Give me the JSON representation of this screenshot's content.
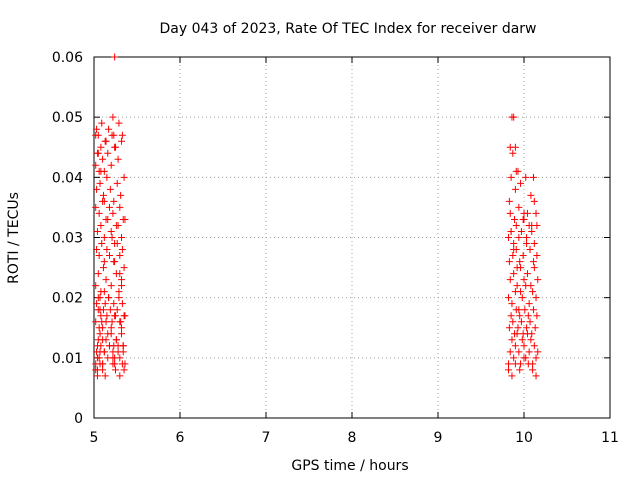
{
  "chart_data": {
    "type": "scatter",
    "title": "Day 043 of 2023, Rate Of TEC Index for receiver darw",
    "xlabel": "GPS time / hours",
    "ylabel": "ROTI / TECUs",
    "xlim": [
      5,
      11
    ],
    "ylim": [
      0,
      0.06
    ],
    "xticks": [
      5,
      6,
      7,
      8,
      9,
      10,
      11
    ],
    "xtick_labels": [
      "5",
      "6",
      "7",
      "8",
      "9",
      "10",
      "11"
    ],
    "yticks": [
      0,
      0.01,
      0.02,
      0.03,
      0.04,
      0.05,
      0.06
    ],
    "ytick_labels": [
      "0",
      "0.01",
      "0.02",
      "0.03",
      "0.04",
      "0.05",
      "0.06"
    ],
    "grid": true,
    "marker": "+",
    "series": [
      {
        "color": "#ff0000",
        "x": [
          5.02,
          5.03,
          5.04,
          5.05,
          5.06,
          5.07,
          5.08,
          5.1,
          5.12,
          5.14,
          5.16,
          5.18,
          5.2,
          5.22,
          5.24,
          5.26,
          5.28,
          5.3,
          5.32,
          5.34,
          5.02,
          5.04,
          5.06,
          5.08,
          5.1,
          5.12,
          5.14,
          5.16,
          5.18,
          5.2,
          5.22,
          5.24,
          5.26,
          5.28,
          5.3,
          5.32,
          5.34,
          5.36,
          5.03,
          5.05,
          5.07,
          5.09,
          5.11,
          5.13,
          5.15,
          5.17,
          5.19,
          5.21,
          5.23,
          5.25,
          5.27,
          5.29,
          5.31,
          5.33,
          5.35,
          5.02,
          5.05,
          5.08,
          5.11,
          5.14,
          5.17,
          5.2,
          5.23,
          5.26,
          5.29,
          5.32,
          5.35,
          5.03,
          5.06,
          5.09,
          5.12,
          5.15,
          5.18,
          5.21,
          5.24,
          5.27,
          5.3,
          5.33,
          5.04,
          5.08,
          5.12,
          5.16,
          5.2,
          5.24,
          5.28,
          5.32,
          5.36,
          5.02,
          5.06,
          5.1,
          5.14,
          5.18,
          5.22,
          5.26,
          5.3,
          5.34,
          5.03,
          5.07,
          5.11,
          5.15,
          5.19,
          5.23,
          5.27,
          5.31,
          5.35,
          5.02,
          5.04,
          5.06,
          5.08,
          5.1,
          5.12,
          5.14,
          5.16,
          5.2,
          5.24,
          5.28,
          5.32,
          5.03,
          5.05,
          5.09,
          5.13,
          5.17,
          5.21,
          5.25,
          5.29,
          5.33,
          5.02,
          5.04,
          5.07,
          5.1,
          5.13,
          5.22,
          5.25,
          5.3,
          5.33,
          5.35,
          5.04,
          5.07,
          5.1,
          5.23,
          5.24,
          5.34,
          5.36,
          5.02,
          5.05,
          5.08,
          5.12,
          5.22,
          5.23,
          5.24,
          5.05,
          5.07,
          5.1,
          5.12,
          5.3,
          5.32,
          9.82,
          9.84,
          9.86,
          9.88,
          9.9,
          9.92,
          9.94,
          9.96,
          9.98,
          10.0,
          10.02,
          10.04,
          10.06,
          10.08,
          10.1,
          10.12,
          10.14,
          10.16,
          9.83,
          9.85,
          9.87,
          9.89,
          9.91,
          9.93,
          9.95,
          9.97,
          9.99,
          10.01,
          10.03,
          10.05,
          10.07,
          10.09,
          10.11,
          10.13,
          10.15,
          9.82,
          9.86,
          9.9,
          9.94,
          9.98,
          10.02,
          10.06,
          10.1,
          10.14,
          9.84,
          9.88,
          9.92,
          9.96,
          10.0,
          10.04,
          10.08,
          10.12,
          10.16,
          9.83,
          9.87,
          9.91,
          9.95,
          9.99,
          10.03,
          10.07,
          10.11,
          10.15,
          9.82,
          9.85,
          9.88,
          9.91,
          9.94,
          9.97,
          10.0,
          10.03,
          10.06,
          10.09,
          10.12,
          10.15,
          9.84,
          9.89,
          9.94,
          9.99,
          10.04,
          10.09,
          10.14,
          9.82,
          9.86,
          9.9,
          9.95,
          10.0,
          10.05,
          10.1,
          10.14,
          9.85,
          9.9,
          9.93,
          9.96,
          10.02,
          10.08,
          10.12,
          9.84,
          9.86,
          9.87,
          9.88,
          9.9,
          9.91,
          10.0,
          9.83,
          9.85,
          9.88,
          9.92,
          9.96,
          10.11
        ],
        "y": [
          0.009,
          0.011,
          0.008,
          0.013,
          0.01,
          0.014,
          0.012,
          0.009,
          0.011,
          0.013,
          0.01,
          0.012,
          0.014,
          0.011,
          0.009,
          0.013,
          0.012,
          0.01,
          0.015,
          0.012,
          0.016,
          0.012,
          0.015,
          0.017,
          0.013,
          0.011,
          0.016,
          0.014,
          0.012,
          0.015,
          0.01,
          0.017,
          0.013,
          0.011,
          0.016,
          0.014,
          0.012,
          0.017,
          0.019,
          0.018,
          0.02,
          0.016,
          0.018,
          0.019,
          0.017,
          0.02,
          0.018,
          0.016,
          0.019,
          0.017,
          0.018,
          0.02,
          0.016,
          0.019,
          0.017,
          0.022,
          0.024,
          0.021,
          0.025,
          0.023,
          0.02,
          0.022,
          0.026,
          0.024,
          0.021,
          0.023,
          0.025,
          0.028,
          0.027,
          0.029,
          0.026,
          0.028,
          0.027,
          0.03,
          0.026,
          0.029,
          0.027,
          0.028,
          0.031,
          0.032,
          0.03,
          0.033,
          0.031,
          0.029,
          0.032,
          0.03,
          0.033,
          0.035,
          0.034,
          0.036,
          0.033,
          0.035,
          0.034,
          0.032,
          0.035,
          0.033,
          0.038,
          0.039,
          0.037,
          0.04,
          0.038,
          0.036,
          0.039,
          0.037,
          0.04,
          0.042,
          0.044,
          0.041,
          0.045,
          0.043,
          0.041,
          0.046,
          0.044,
          0.042,
          0.045,
          0.043,
          0.046,
          0.048,
          0.047,
          0.049,
          0.046,
          0.048,
          0.047,
          0.045,
          0.049,
          0.047,
          0.008,
          0.007,
          0.009,
          0.008,
          0.007,
          0.009,
          0.008,
          0.007,
          0.009,
          0.008,
          0.01,
          0.011,
          0.009,
          0.012,
          0.01,
          0.011,
          0.009,
          0.047,
          0.044,
          0.041,
          0.036,
          0.05,
          0.047,
          0.06,
          0.02,
          0.018,
          0.015,
          0.021,
          0.024,
          0.022,
          0.009,
          0.011,
          0.013,
          0.01,
          0.012,
          0.014,
          0.011,
          0.009,
          0.013,
          0.012,
          0.01,
          0.014,
          0.011,
          0.013,
          0.009,
          0.012,
          0.01,
          0.011,
          0.015,
          0.017,
          0.016,
          0.014,
          0.018,
          0.015,
          0.017,
          0.016,
          0.014,
          0.018,
          0.015,
          0.017,
          0.016,
          0.014,
          0.018,
          0.015,
          0.017,
          0.02,
          0.019,
          0.021,
          0.018,
          0.02,
          0.022,
          0.019,
          0.021,
          0.02,
          0.023,
          0.024,
          0.022,
          0.025,
          0.023,
          0.024,
          0.022,
          0.025,
          0.023,
          0.026,
          0.027,
          0.028,
          0.026,
          0.027,
          0.029,
          0.028,
          0.026,
          0.027,
          0.03,
          0.031,
          0.029,
          0.032,
          0.03,
          0.031,
          0.033,
          0.03,
          0.032,
          0.031,
          0.029,
          0.032,
          0.034,
          0.033,
          0.035,
          0.033,
          0.034,
          0.032,
          0.034,
          0.008,
          0.007,
          0.009,
          0.008,
          0.01,
          0.009,
          0.008,
          0.007,
          0.04,
          0.038,
          0.041,
          0.039,
          0.04,
          0.037,
          0.036,
          0.045,
          0.05,
          0.044,
          0.05,
          0.045,
          0.041,
          0.034,
          0.036,
          0.031,
          0.028,
          0.025,
          0.021,
          0.04
        ]
      }
    ]
  }
}
